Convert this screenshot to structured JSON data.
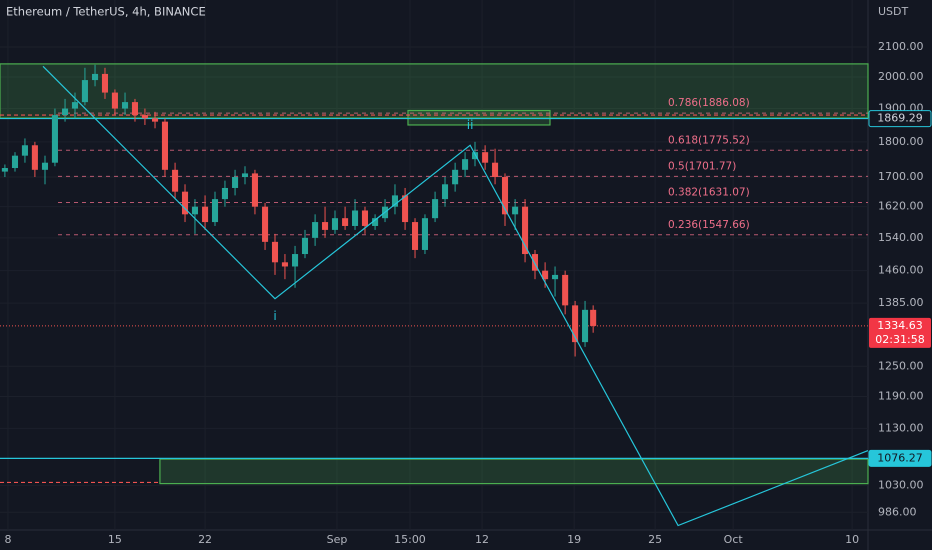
{
  "chart_data": {
    "type": "candlestick",
    "title": "Ethereum / TetherUS, 4h, BINANCE",
    "y_label": "USDT",
    "log_scale": true,
    "up_color": "#26a69a",
    "down_color": "#ef5350",
    "xlim": [
      7.48,
      64.2
    ],
    "ylim": [
      958,
      2266.5
    ],
    "yticks": [
      {
        "value": 2100,
        "label": "2100.00"
      },
      {
        "value": 2000,
        "label": "2000.00"
      },
      {
        "value": 1900,
        "label": "1900.00"
      },
      {
        "value": 1800,
        "label": "1800.00"
      },
      {
        "value": 1700,
        "label": "1700.00"
      },
      {
        "value": 1620,
        "label": "1620.00"
      },
      {
        "value": 1540,
        "label": "1540.00"
      },
      {
        "value": 1460,
        "label": "1460.00"
      },
      {
        "value": 1385,
        "label": "1385.00"
      },
      {
        "value": 1250,
        "label": "1250.00"
      },
      {
        "value": 1190,
        "label": "1190.00"
      },
      {
        "value": 1130,
        "label": "1130.00"
      },
      {
        "value": 1030,
        "label": "1030.00"
      },
      {
        "value": 986,
        "label": "986.00"
      }
    ],
    "xticks": [
      {
        "value": 8,
        "label": "8"
      },
      {
        "value": 14.99,
        "label": "15"
      },
      {
        "value": 20.88,
        "label": "22"
      },
      {
        "value": 29.5,
        "label": "Sep"
      },
      {
        "value": 34.27,
        "label": "15:00"
      },
      {
        "value": 38.98,
        "label": "12"
      },
      {
        "value": 45.0,
        "label": "19"
      },
      {
        "value": 50.29,
        "label": "25"
      },
      {
        "value": 55.39,
        "label": "Oct"
      },
      {
        "value": 63.16,
        "label": "10"
      }
    ],
    "x": [
      7.8,
      8.46,
      9.11,
      9.76,
      10.42,
      11.07,
      11.73,
      12.38,
      13.03,
      13.69,
      14.34,
      14.99,
      15.65,
      16.3,
      16.95,
      17.61,
      18.26,
      18.92,
      19.57,
      20.22,
      20.88,
      21.53,
      22.18,
      22.84,
      23.49,
      24.14,
      24.8,
      25.45,
      26.1,
      26.76,
      27.41,
      28.07,
      28.72,
      29.37,
      30.03,
      30.68,
      31.33,
      31.99,
      32.64,
      33.29,
      33.95,
      34.6,
      35.25,
      35.91,
      36.56,
      37.22,
      37.87,
      38.52,
      39.18,
      39.83,
      40.48,
      41.14,
      41.79,
      42.44,
      43.1,
      43.75,
      44.41,
      45.06,
      45.71,
      46.24
    ],
    "open": [
      1715,
      1725,
      1760,
      1790,
      1720,
      1740,
      1880,
      1900,
      1920,
      1990,
      2010,
      1950,
      1900,
      1920,
      1880,
      1870,
      1860,
      1720,
      1660,
      1600,
      1620,
      1580,
      1640,
      1670,
      1700,
      1710,
      1620,
      1530,
      1480,
      1470,
      1500,
      1540,
      1580,
      1560,
      1590,
      1570,
      1610,
      1570,
      1590,
      1620,
      1650,
      1580,
      1510,
      1590,
      1640,
      1680,
      1720,
      1750,
      1770,
      1740,
      1700,
      1600,
      1620,
      1500,
      1460,
      1440,
      1450,
      1380,
      1300,
      1370
    ],
    "high": [
      1735,
      1770,
      1810,
      1800,
      1760,
      1900,
      1930,
      1950,
      2030,
      2040,
      2030,
      1960,
      1950,
      1930,
      1900,
      1890,
      1870,
      1740,
      1680,
      1640,
      1650,
      1660,
      1690,
      1720,
      1730,
      1720,
      1630,
      1550,
      1500,
      1520,
      1560,
      1600,
      1620,
      1610,
      1620,
      1640,
      1620,
      1600,
      1640,
      1680,
      1670,
      1590,
      1600,
      1660,
      1700,
      1740,
      1770,
      1800,
      1790,
      1780,
      1710,
      1640,
      1640,
      1510,
      1480,
      1470,
      1460,
      1390,
      1390,
      1380
    ],
    "low": [
      1700,
      1715,
      1740,
      1700,
      1680,
      1730,
      1860,
      1870,
      1910,
      1970,
      1930,
      1880,
      1880,
      1860,
      1850,
      1840,
      1700,
      1640,
      1580,
      1550,
      1560,
      1570,
      1620,
      1650,
      1680,
      1600,
      1510,
      1450,
      1440,
      1420,
      1490,
      1520,
      1540,
      1550,
      1560,
      1560,
      1550,
      1560,
      1580,
      1600,
      1560,
      1490,
      1500,
      1580,
      1620,
      1660,
      1700,
      1730,
      1720,
      1680,
      1570,
      1560,
      1480,
      1440,
      1420,
      1400,
      1360,
      1270,
      1290,
      1320
    ],
    "close": [
      1725,
      1760,
      1790,
      1720,
      1740,
      1880,
      1900,
      1920,
      1990,
      2010,
      1950,
      1900,
      1920,
      1880,
      1870,
      1860,
      1720,
      1660,
      1600,
      1620,
      1580,
      1640,
      1670,
      1700,
      1710,
      1620,
      1530,
      1480,
      1470,
      1500,
      1540,
      1580,
      1560,
      1590,
      1570,
      1610,
      1570,
      1590,
      1620,
      1650,
      1580,
      1510,
      1590,
      1640,
      1680,
      1720,
      1750,
      1770,
      1740,
      1700,
      1600,
      1620,
      1500,
      1460,
      1440,
      1450,
      1380,
      1300,
      1370,
      1334.63
    ],
    "zones": [
      {
        "x": [
          7.48,
          64.2
        ],
        "y": [
          1871,
          2043
        ]
      },
      {
        "x": [
          34.14,
          43.42
        ],
        "y": [
          1850,
          1894
        ]
      },
      {
        "x": [
          17.93,
          64.2
        ],
        "y": [
          1033,
          1075
        ]
      }
    ],
    "zone_color": "#4caf50",
    "fib_x": [
      11.27,
      64.2
    ],
    "levels": [
      {
        "value": 1886.08,
        "label": "0.786(1886.08)"
      },
      {
        "value": 1775.52,
        "label": "0.618(1775.52)"
      },
      {
        "value": 1701.77,
        "label": "0.5(1701.77)"
      },
      {
        "value": 1631.07,
        "label": "0.382(1631.07)"
      },
      {
        "value": 1547.66,
        "label": "0.236(1547.66)"
      }
    ],
    "level_color": "#ef6f8a",
    "dashed_lines": [
      {
        "value": 1880,
        "x": [
          7.48,
          64.2
        ]
      },
      {
        "value": 1035,
        "x": [
          7.48,
          17.93
        ]
      }
    ],
    "hlines": [
      {
        "value": 1869.29,
        "label": "1869.29"
      },
      {
        "value": 1076.27,
        "label": "1076.27"
      }
    ],
    "hline_color": "#26c6da",
    "last": {
      "value": 1334.63,
      "label": "1334.63",
      "countdown": "02:31:58"
    },
    "wave": {
      "x": [
        10.29,
        25.45,
        38.2,
        51.79,
        64.2
      ],
      "values": [
        2035,
        1395,
        1790,
        965,
        1090
      ],
      "point_labels": [
        null,
        "i",
        "ii",
        null,
        null
      ],
      "color": "#26c6da"
    }
  }
}
